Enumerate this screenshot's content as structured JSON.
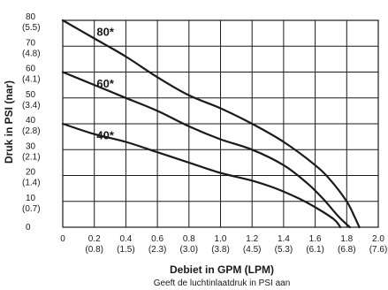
{
  "chart_data": {
    "type": "line",
    "xlabel": "Debiet in GPM (LPM)",
    "ylabel": "Druk in PSI (nar)",
    "caption": "Geeft de luchtinlaatdruk in PSI aan",
    "xlim": [
      0,
      2.0
    ],
    "ylim": [
      0,
      80
    ],
    "grid": true,
    "x_ticks": [
      {
        "value": 0,
        "label": "0",
        "sub": ""
      },
      {
        "value": 0.2,
        "label": "0.2",
        "sub": "(0.8)"
      },
      {
        "value": 0.4,
        "label": "0.4",
        "sub": "(1.5)"
      },
      {
        "value": 0.6,
        "label": "0.6",
        "sub": "(2.3)"
      },
      {
        "value": 0.8,
        "label": "0.8",
        "sub": "(3.0)"
      },
      {
        "value": 1.0,
        "label": "1.0",
        "sub": "(3.8)"
      },
      {
        "value": 1.2,
        "label": "1.2",
        "sub": "(4.5)"
      },
      {
        "value": 1.4,
        "label": "1.4",
        "sub": "(5.3)"
      },
      {
        "value": 1.6,
        "label": "1.6",
        "sub": "(6.1)"
      },
      {
        "value": 1.8,
        "label": "1.8",
        "sub": "(6.8)"
      },
      {
        "value": 2.0,
        "label": "2.0",
        "sub": "(7.6)"
      }
    ],
    "y_ticks": [
      {
        "value": 0,
        "label": "0",
        "sub": ""
      },
      {
        "value": 10,
        "label": "10",
        "sub": "(0.7)"
      },
      {
        "value": 20,
        "label": "20",
        "sub": "(1.4)"
      },
      {
        "value": 30,
        "label": "30",
        "sub": "(2.1)"
      },
      {
        "value": 40,
        "label": "40",
        "sub": "(2.8)"
      },
      {
        "value": 50,
        "label": "50",
        "sub": "(3.4)"
      },
      {
        "value": 60,
        "label": "60",
        "sub": "(4.1)"
      },
      {
        "value": 70,
        "label": "70",
        "sub": "(4.8)"
      },
      {
        "value": 80,
        "label": "80",
        "sub": "(5.5)"
      }
    ],
    "series": [
      {
        "name": "80*",
        "label_at": [
          0.27,
          74
        ],
        "x": [
          0,
          0.2,
          0.4,
          0.6,
          0.8,
          1.0,
          1.2,
          1.4,
          1.6,
          1.7,
          1.8,
          1.85,
          1.88
        ],
        "y": [
          80,
          73,
          66,
          58,
          51,
          46,
          40,
          33,
          24,
          18,
          10,
          4,
          0
        ]
      },
      {
        "name": "60*",
        "label_at": [
          0.27,
          54
        ],
        "x": [
          0,
          0.2,
          0.4,
          0.6,
          0.8,
          1.0,
          1.2,
          1.4,
          1.55,
          1.65,
          1.75,
          1.82
        ],
        "y": [
          60,
          55,
          50,
          45,
          39,
          34,
          30,
          24,
          17,
          11,
          4,
          0
        ]
      },
      {
        "name": "40*",
        "label_at": [
          0.27,
          34
        ],
        "x": [
          0,
          0.2,
          0.4,
          0.6,
          0.8,
          1.0,
          1.2,
          1.35,
          1.5,
          1.62,
          1.72,
          1.76
        ],
        "y": [
          40,
          36,
          33,
          29,
          25,
          21,
          18,
          15,
          11,
          7,
          3,
          0
        ]
      }
    ]
  }
}
